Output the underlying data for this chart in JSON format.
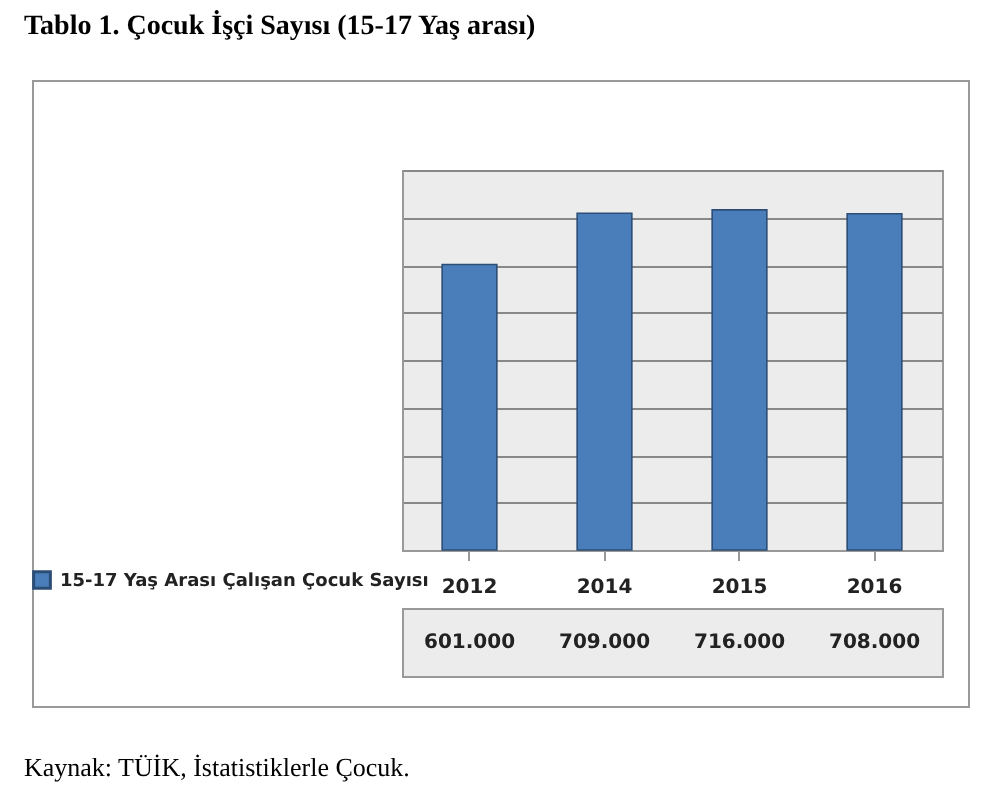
{
  "chart_data": {
    "type": "bar",
    "title": "Tablo 1. Çocuk İşçi Sayısı (15-17 Yaş arası)",
    "categories": [
      "2012",
      "2014",
      "2015",
      "2016"
    ],
    "series": [
      {
        "name": "15-17 Yaş Arası Çalışan Çocuk Sayısı",
        "color": "#4a7ebb",
        "values": [
          601000,
          709000,
          716000,
          708000
        ],
        "value_labels": [
          "601.000",
          "709.000",
          "716.000",
          "708.000"
        ]
      }
    ],
    "grid": "y",
    "legend": "bottom left",
    "tick_labels": "x",
    "annotations": [
      "Kaynak: TÜİK, İstatistiklerle Çocuk."
    ]
  }
}
